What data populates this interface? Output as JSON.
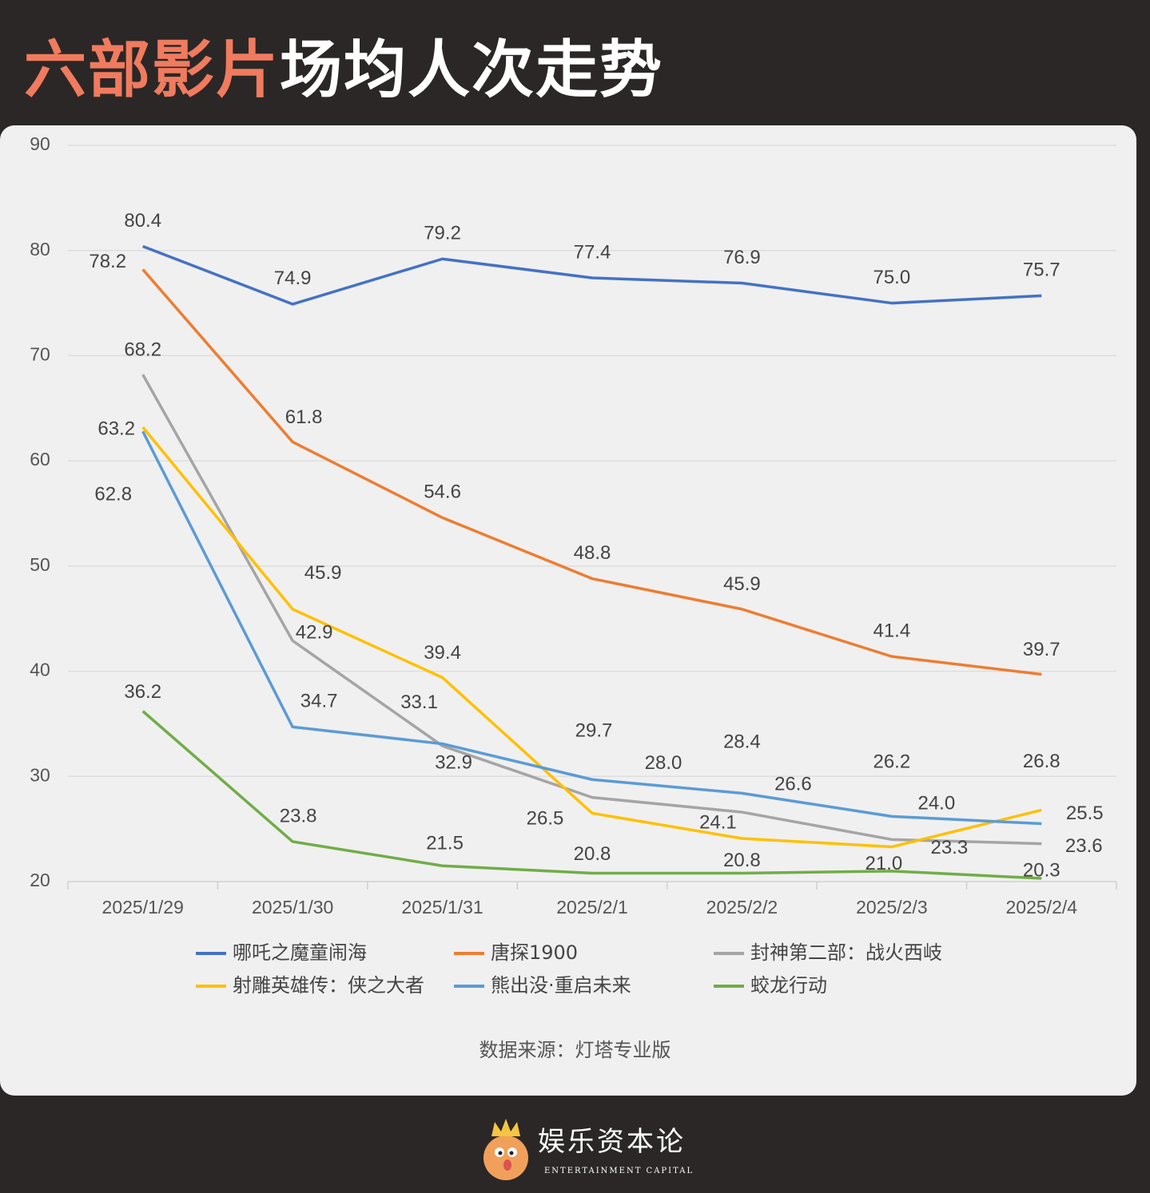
{
  "title": {
    "highlight": "六部影片",
    "rest": "场均人次走势"
  },
  "source": "数据来源：灯塔专业版",
  "footer": {
    "brand": "娱乐资本论",
    "brand_en": "ENTERTAINMENT CAPITAL"
  },
  "chart_data": {
    "type": "line",
    "title": "",
    "xlabel": "",
    "ylabel": "",
    "ylim": [
      20,
      90
    ],
    "yticks": [
      90,
      80,
      70,
      60,
      50,
      40,
      30,
      20
    ],
    "grid": true,
    "legend_position": "bottom",
    "categories": [
      "2025/1/29",
      "2025/1/30",
      "2025/1/31",
      "2025/2/1",
      "2025/2/2",
      "2025/2/3",
      "2025/2/4"
    ],
    "series": [
      {
        "name": "哪吒之魔童闹海",
        "color": "#4472c4",
        "values": [
          80.4,
          74.9,
          79.2,
          77.4,
          76.9,
          75.0,
          75.7
        ]
      },
      {
        "name": "唐探1900",
        "color": "#ed7d31",
        "values": [
          78.2,
          61.8,
          54.6,
          48.8,
          45.9,
          41.4,
          39.7
        ]
      },
      {
        "name": "封神第二部：战火西岐",
        "color": "#a5a5a5",
        "values": [
          68.2,
          42.9,
          32.9,
          28.0,
          26.6,
          24.0,
          23.6
        ]
      },
      {
        "name": "射雕英雄传：侠之大者",
        "color": "#ffc000",
        "values": [
          63.2,
          45.9,
          39.4,
          26.5,
          24.1,
          23.3,
          26.8
        ]
      },
      {
        "name": "熊出没·重启未来",
        "color": "#5b9bd5",
        "values": [
          62.8,
          34.7,
          33.1,
          29.7,
          28.4,
          26.2,
          25.5
        ]
      },
      {
        "name": "蛟龙行动",
        "color": "#70ad47",
        "values": [
          36.2,
          23.8,
          21.5,
          20.8,
          20.8,
          21.0,
          20.3
        ]
      }
    ]
  }
}
